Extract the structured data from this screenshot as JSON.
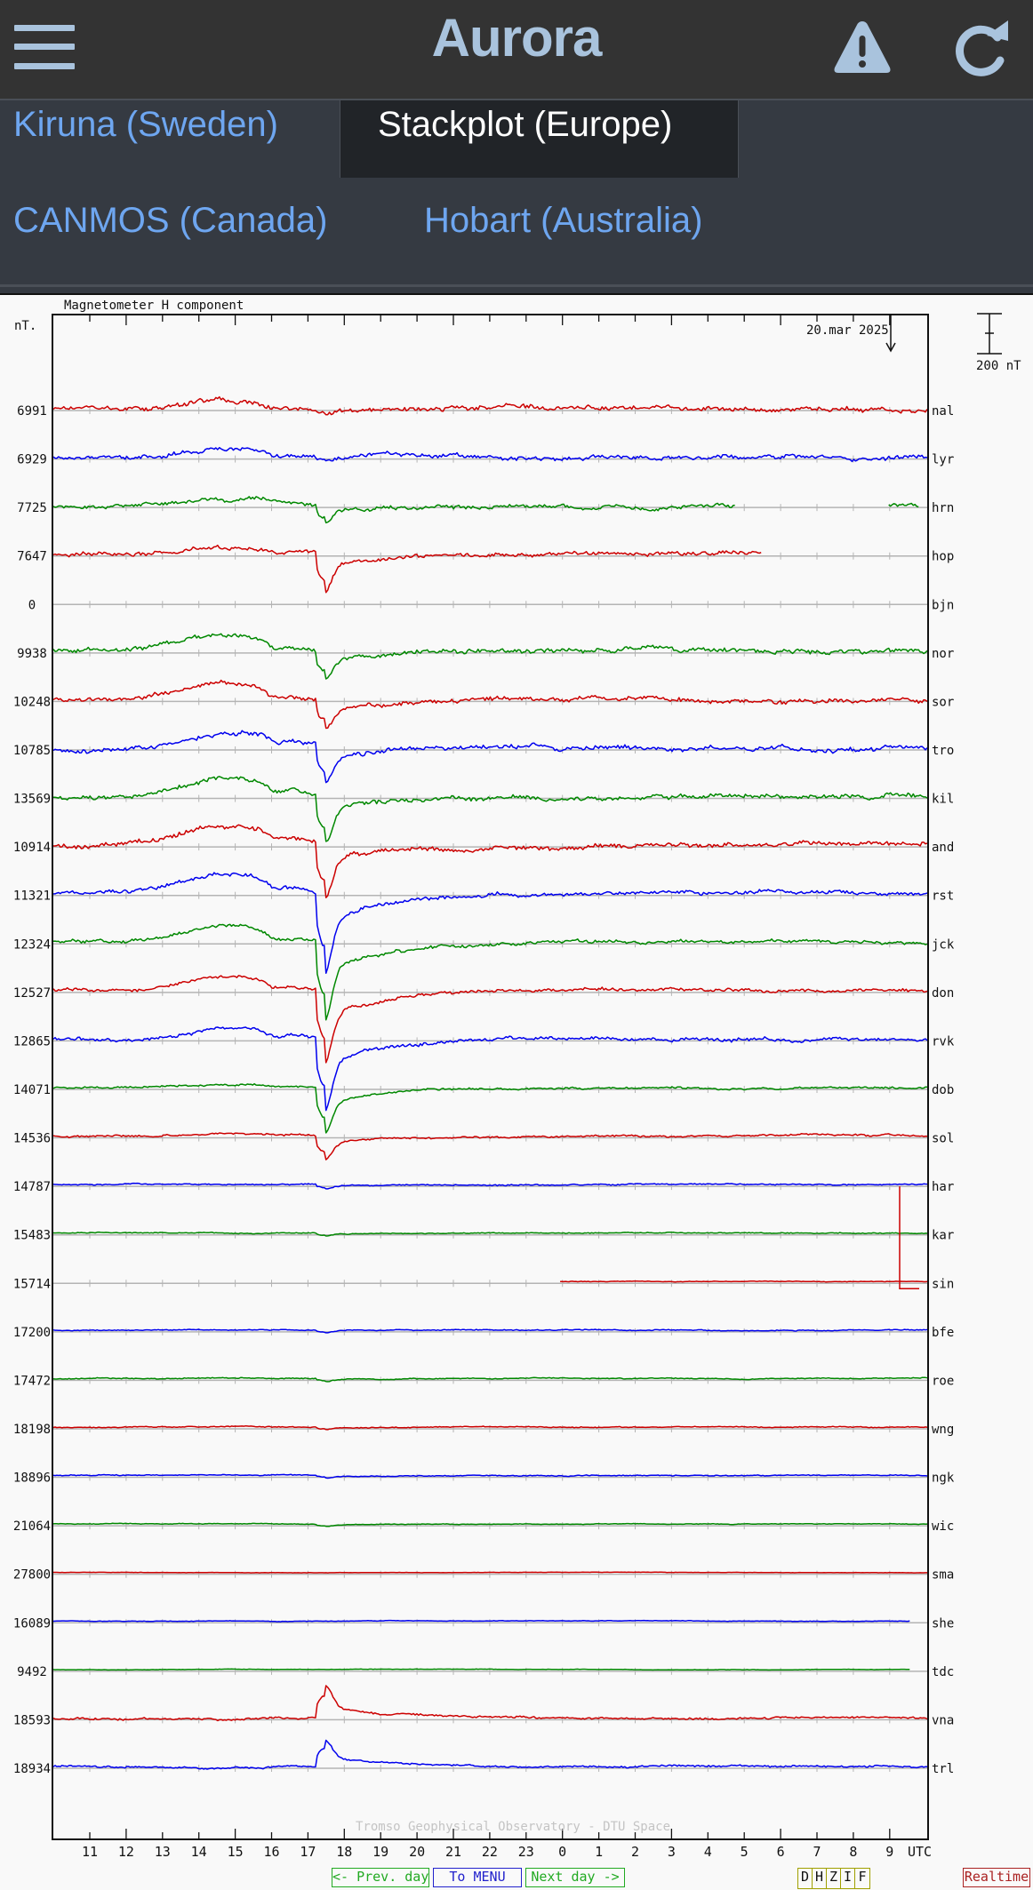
{
  "app": {
    "title": "Aurora",
    "menu_icon": "hamburger-menu-icon",
    "alert_icon": "warning-triangle-icon",
    "refresh_icon": "refresh-icon",
    "colors": {
      "bar_bg": "#333333",
      "tab_bg": "#353a42",
      "active_tab_bg": "#212428",
      "accent": "#a9c3dd",
      "link": "#6ea6f0"
    }
  },
  "tabs": [
    {
      "label": "Kiruna (Sweden)",
      "active": false
    },
    {
      "label": "Stackplot (Europe)",
      "active": true
    },
    {
      "label": "CANMOS (Canada)",
      "active": false
    },
    {
      "label": "Hobart (Australia)",
      "active": false
    }
  ],
  "plot": {
    "header": "Magnetometer H component",
    "unit_label": "nT.",
    "date": "20.mar 2025",
    "scale_bar_label": "200 nT",
    "x_axis_unit": "UTC",
    "watermark": "Tromso Geophysical Observatory - DTU Space"
  },
  "nav": {
    "prev_day": "<- Prev. day",
    "menu": "To MENU",
    "next_day": "Next day ->",
    "components": [
      "D",
      "H",
      "Z",
      "I",
      "F"
    ],
    "realtime": "Realtime"
  },
  "chart_data": {
    "type": "line",
    "title": "Magnetometer H component",
    "subtitle": "20.mar 2025",
    "xlabel": "UTC",
    "ylabel": "nT.",
    "scale": "200 nT per scale bar",
    "x_ticks": [
      "11",
      "12",
      "13",
      "14",
      "15",
      "16",
      "17",
      "18",
      "19",
      "20",
      "21",
      "22",
      "23",
      "0",
      "1",
      "2",
      "3",
      "4",
      "5",
      "6",
      "7",
      "8",
      "9"
    ],
    "x_range": [
      "10 UTC (20 Mar)",
      "10 UTC (21 Mar)"
    ],
    "grid": true,
    "legend_position": "right (station codes)",
    "series": [
      {
        "name": "nal",
        "baseline": 6991,
        "color": "#cc0000",
        "amp": 28,
        "noise": 7,
        "storm": 0.15,
        "bay": 0.6,
        "dataStart": 0,
        "dataEnd": 1
      },
      {
        "name": "lyr",
        "baseline": 6929,
        "color": "#0000ee",
        "amp": 26,
        "noise": 7,
        "storm": 0.2,
        "bay": 0.6,
        "dataStart": 0,
        "dataEnd": 1
      },
      {
        "name": "hrn",
        "baseline": 7725,
        "color": "#008800",
        "amp": 22,
        "noise": 6,
        "storm": 0.6,
        "bay": 0.5,
        "dataStart": 0,
        "dataEnd": 0.78,
        "resume": 0.955
      },
      {
        "name": "hop",
        "baseline": 7647,
        "color": "#cc0000",
        "amp": 20,
        "noise": 6,
        "storm": 1.4,
        "bay": 0.5,
        "dataStart": 0,
        "dataEnd": 0.81
      },
      {
        "name": "bjn",
        "baseline": 0,
        "color": "#cc0000",
        "amp": 0,
        "noise": 0,
        "storm": 0,
        "bay": 0,
        "dataStart": 1,
        "dataEnd": 1
      },
      {
        "name": "nor",
        "baseline": 9938,
        "color": "#008800",
        "amp": 26,
        "noise": 7,
        "storm": 1.0,
        "bay": 1.2,
        "dataStart": 0,
        "dataEnd": 1
      },
      {
        "name": "sor",
        "baseline": 10248,
        "color": "#cc0000",
        "amp": 26,
        "noise": 7,
        "storm": 1.0,
        "bay": 1.2,
        "dataStart": 0,
        "dataEnd": 1
      },
      {
        "name": "tro",
        "baseline": 10785,
        "color": "#0000ee",
        "amp": 26,
        "noise": 7,
        "storm": 1.3,
        "bay": 1.2,
        "dataStart": 0,
        "dataEnd": 1
      },
      {
        "name": "kil",
        "baseline": 13569,
        "color": "#008800",
        "amp": 26,
        "noise": 7,
        "storm": 1.6,
        "bay": 1.2,
        "dataStart": 0,
        "dataEnd": 1
      },
      {
        "name": "and",
        "baseline": 10914,
        "color": "#cc0000",
        "amp": 26,
        "noise": 7,
        "storm": 1.9,
        "bay": 1.2,
        "dataStart": 0,
        "dataEnd": 1
      },
      {
        "name": "rst",
        "baseline": 11321,
        "color": "#0000ee",
        "amp": 26,
        "noise": 6,
        "storm": 2.6,
        "bay": 1.2,
        "dataStart": 0,
        "dataEnd": 1
      },
      {
        "name": "jck",
        "baseline": 12324,
        "color": "#008800",
        "amp": 24,
        "noise": 5,
        "storm": 2.6,
        "bay": 1.2,
        "dataStart": 0,
        "dataEnd": 1
      },
      {
        "name": "don",
        "baseline": 12527,
        "color": "#cc0000",
        "amp": 22,
        "noise": 5,
        "storm": 2.4,
        "bay": 1.2,
        "dataStart": 0,
        "dataEnd": 1
      },
      {
        "name": "rvk",
        "baseline": 12865,
        "color": "#0000ee",
        "amp": 20,
        "noise": 5,
        "storm": 2.4,
        "bay": 1.0,
        "dataStart": 0,
        "dataEnd": 1
      },
      {
        "name": "dob",
        "baseline": 14071,
        "color": "#008800",
        "amp": 12,
        "noise": 3,
        "storm": 1.5,
        "bay": 0.4,
        "dataStart": 0,
        "dataEnd": 1
      },
      {
        "name": "sol",
        "baseline": 14536,
        "color": "#cc0000",
        "amp": 10,
        "noise": 3,
        "storm": 0.8,
        "bay": 0.3,
        "dataStart": 0,
        "dataEnd": 1
      },
      {
        "name": "har",
        "baseline": 14787,
        "color": "#0000ee",
        "amp": 4,
        "noise": 2,
        "storm": 0.15,
        "bay": 0.05,
        "dataStart": 0,
        "dataEnd": 1
      },
      {
        "name": "kar",
        "baseline": 15483,
        "color": "#008800",
        "amp": 4,
        "noise": 1.5,
        "storm": 0.1,
        "bay": 0.05,
        "dataStart": 0,
        "dataEnd": 1
      },
      {
        "name": "sin",
        "baseline": 15714,
        "color": "#cc0000",
        "amp": 3,
        "noise": 1,
        "storm": 0,
        "bay": 0.0,
        "dataStart": 0.58,
        "dataEnd": 1
      },
      {
        "name": "bfe",
        "baseline": 17200,
        "color": "#0000ee",
        "amp": 4,
        "noise": 1.5,
        "storm": 0.1,
        "bay": 0.1,
        "dataStart": 0,
        "dataEnd": 1
      },
      {
        "name": "roe",
        "baseline": 17472,
        "color": "#008800",
        "amp": 4,
        "noise": 1.5,
        "storm": 0.1,
        "bay": 0.1,
        "dataStart": 0,
        "dataEnd": 1
      },
      {
        "name": "wng",
        "baseline": 18198,
        "color": "#cc0000",
        "amp": 4,
        "noise": 1.5,
        "storm": 0.1,
        "bay": 0.1,
        "dataStart": 0,
        "dataEnd": 1
      },
      {
        "name": "ngk",
        "baseline": 18896,
        "color": "#0000ee",
        "amp": 4,
        "noise": 1.5,
        "storm": 0.1,
        "bay": 0.12,
        "dataStart": 0,
        "dataEnd": 1
      },
      {
        "name": "wic",
        "baseline": 21064,
        "color": "#008800",
        "amp": 4,
        "noise": 1,
        "storm": 0.08,
        "bay": 0.1,
        "dataStart": 0,
        "dataEnd": 1
      },
      {
        "name": "sma",
        "baseline": 27800,
        "color": "#cc0000",
        "amp": 4,
        "noise": 0.5,
        "storm": 0,
        "bay": 0.05,
        "dataStart": 0,
        "dataEnd": 1
      },
      {
        "name": "she",
        "baseline": 16089,
        "color": "#0000ee",
        "amp": 5,
        "noise": 0.8,
        "storm": 0,
        "bay": 0.1,
        "dataStart": 0,
        "dataEnd": 0.98
      },
      {
        "name": "tdc",
        "baseline": 9492,
        "color": "#008800",
        "amp": 5,
        "noise": 0.6,
        "storm": 0,
        "bay": 0.1,
        "dataStart": 0,
        "dataEnd": 0.98
      },
      {
        "name": "vna",
        "baseline": 18593,
        "color": "#cc0000",
        "amp": 10,
        "noise": 3,
        "storm": -1.1,
        "bay": -0.4,
        "dataStart": 0,
        "dataEnd": 1
      },
      {
        "name": "trl",
        "baseline": 18934,
        "color": "#0000ee",
        "amp": 10,
        "noise": 3,
        "storm": -0.9,
        "bay": -0.5,
        "dataStart": 0,
        "dataEnd": 1
      }
    ]
  }
}
